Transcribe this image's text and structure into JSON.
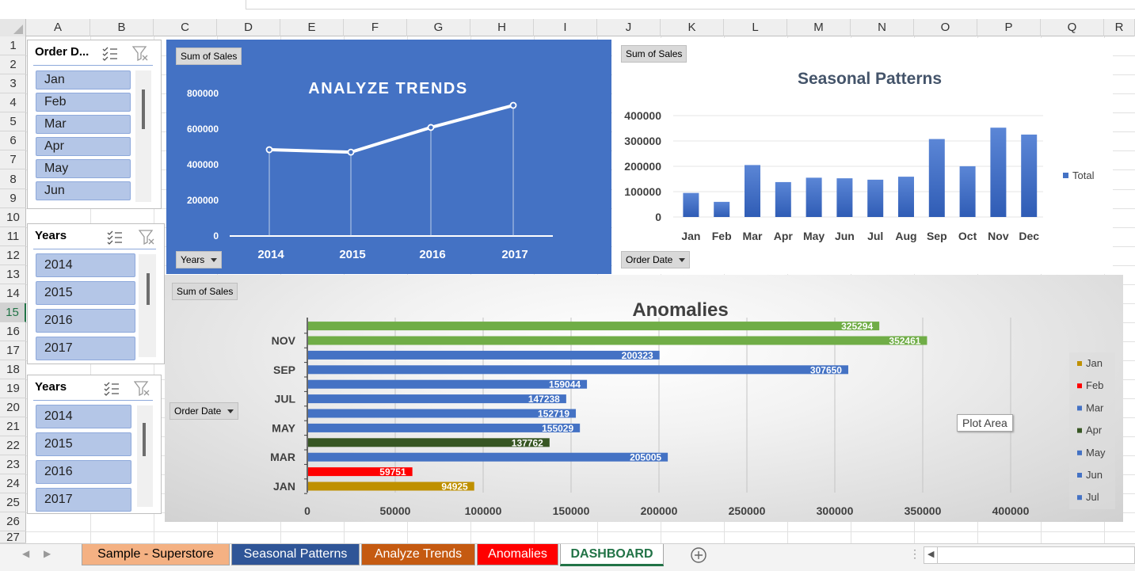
{
  "columns": [
    "A",
    "B",
    "C",
    "D",
    "E",
    "F",
    "G",
    "H",
    "I",
    "J",
    "K",
    "L",
    "M",
    "N",
    "O",
    "P",
    "Q",
    "R"
  ],
  "rows": [
    "1",
    "2",
    "3",
    "4",
    "5",
    "6",
    "7",
    "8",
    "9",
    "10",
    "11",
    "12",
    "13",
    "14",
    "15",
    "16",
    "17",
    "18",
    "19",
    "20",
    "21",
    "22",
    "23",
    "24",
    "25",
    "26",
    "27"
  ],
  "selected_row": "15",
  "slicer_order_date": {
    "title": "Order D...",
    "items": [
      "Jan",
      "Feb",
      "Mar",
      "Apr",
      "May",
      "Jun"
    ]
  },
  "slicer_years_1": {
    "title": "Years",
    "items": [
      "2014",
      "2015",
      "2016",
      "2017"
    ]
  },
  "slicer_years_2": {
    "title": "Years",
    "items": [
      "2014",
      "2015",
      "2016",
      "2017"
    ]
  },
  "colors": {
    "panel_blue": "#4472c4",
    "bar_blue": "#4472c4",
    "bar_green": "#70ad47",
    "bar_dark_green": "#375623",
    "bar_red": "#ff0000",
    "bar_gold": "#bf9000"
  },
  "analyze_trends": {
    "field_button": "Sum of Sales",
    "axis_button": "Years",
    "chart_data": {
      "type": "line",
      "title": "ANALYZE TRENDS",
      "categories": [
        "2014",
        "2015",
        "2016",
        "2017"
      ],
      "values": [
        484247,
        470533,
        609205,
        733215
      ],
      "y_ticks": [
        "0",
        "200000",
        "400000",
        "600000",
        "800000"
      ],
      "ylim": [
        0,
        800000
      ]
    }
  },
  "seasonal": {
    "field_button": "Sum of Sales",
    "axis_button": "Order Date",
    "chart_data": {
      "type": "bar",
      "title": "Seasonal Patterns",
      "categories": [
        "Jan",
        "Feb",
        "Mar",
        "Apr",
        "May",
        "Jun",
        "Jul",
        "Aug",
        "Sep",
        "Oct",
        "Nov",
        "Dec"
      ],
      "values": [
        94925,
        59751,
        205005,
        137762,
        155029,
        152719,
        147238,
        159044,
        307650,
        200323,
        352461,
        325294
      ],
      "y_ticks": [
        "0",
        "100000",
        "200000",
        "300000",
        "400000"
      ],
      "ylim": [
        0,
        400000
      ],
      "legend": "Total"
    }
  },
  "anomalies": {
    "field_button": "Sum of Sales",
    "axis_button": "Order Date",
    "plot_area_tooltip": "Plot Area",
    "chart_data": {
      "type": "bar",
      "orientation": "horizontal",
      "title": "Anomalies",
      "categories": [
        "Jan",
        "Feb",
        "Mar",
        "Apr",
        "May",
        "Jun",
        "Jul",
        "Aug",
        "Sep",
        "Oct",
        "Nov",
        "Dec"
      ],
      "values": [
        94925,
        59751,
        205005,
        137762,
        155029,
        152719,
        147238,
        159044,
        307650,
        200323,
        352461,
        325294
      ],
      "y_labels": [
        "JAN",
        "MAR",
        "MAY",
        "JUL",
        "SEP",
        "NOV"
      ],
      "x_ticks": [
        "0",
        "50000",
        "100000",
        "150000",
        "200000",
        "250000",
        "300000",
        "350000",
        "400000"
      ],
      "xlim": [
        0,
        400000
      ],
      "legend": [
        "Jan",
        "Feb",
        "Mar",
        "Apr",
        "May",
        "Jun",
        "Jul"
      ]
    }
  },
  "tabs": [
    {
      "label": "Sample - Superstore",
      "bg": "#f4b183",
      "fg": "#000000"
    },
    {
      "label": "Seasonal Patterns",
      "bg": "#2f5597",
      "fg": "#ffffff"
    },
    {
      "label": "Analyze Trends",
      "bg": "#c55a11",
      "fg": "#ffffff"
    },
    {
      "label": "Anomalies",
      "bg": "#ff0000",
      "fg": "#ffffff"
    },
    {
      "label": "DASHBOARD",
      "bg": "#ffffff",
      "fg": "#217346"
    }
  ],
  "new_sheet_icon": "plus-circle-icon"
}
